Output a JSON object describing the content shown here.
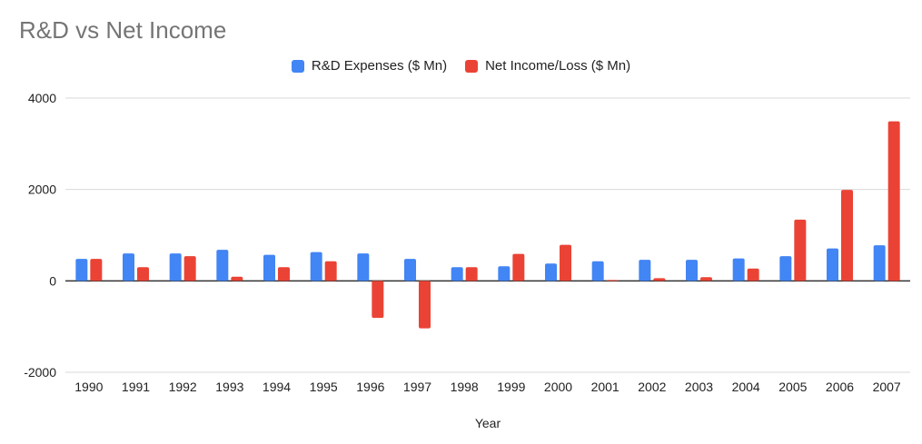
{
  "chart_data": {
    "type": "bar",
    "title": "R&D vs Net Income",
    "xlabel": "Year",
    "ylabel": "",
    "ylim": [
      -2000,
      4000
    ],
    "yticks": [
      "-2000",
      "0",
      "2000",
      "4000"
    ],
    "grid": true,
    "legend_position": "top",
    "categories": [
      "1990",
      "1991",
      "1992",
      "1993",
      "1994",
      "1995",
      "1996",
      "1997",
      "1998",
      "1999",
      "2000",
      "2001",
      "2002",
      "2003",
      "2004",
      "2005",
      "2006",
      "2007"
    ],
    "series": [
      {
        "name": "R&D Expenses ($ Mn)",
        "color": "#4285f4",
        "values": [
          480,
          600,
          600,
          680,
          570,
          630,
          600,
          480,
          300,
          320,
          380,
          430,
          460,
          460,
          490,
          540,
          710,
          780
        ]
      },
      {
        "name": "Net Income/Loss  ($ Mn)",
        "color": "#ea4335",
        "values": [
          480,
          300,
          540,
          90,
          300,
          430,
          -810,
          -1040,
          300,
          590,
          790,
          20,
          60,
          80,
          270,
          1340,
          1990,
          3490
        ]
      }
    ]
  }
}
